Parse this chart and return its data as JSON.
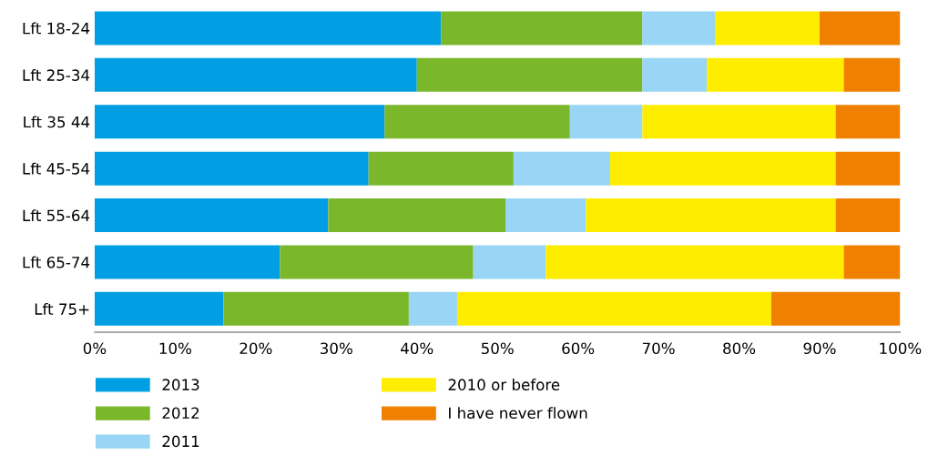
{
  "chart_data": {
    "type": "bar",
    "orientation": "horizontal",
    "stacked": true,
    "legend": "bottom",
    "grid": false,
    "categories": [
      "Lft 18-24",
      "Lft 25-34",
      "Lft 35 44",
      "Lft 45-54",
      "Lft 55-64",
      "Lft 65-74",
      "Lft 75+"
    ],
    "xlim": [
      0,
      100
    ],
    "xticks": [
      {
        "value": 0,
        "label": "0%"
      },
      {
        "value": 10,
        "label": "10%"
      },
      {
        "value": 20,
        "label": "20%"
      },
      {
        "value": 30,
        "label": "30%"
      },
      {
        "value": 40,
        "label": "40%"
      },
      {
        "value": 50,
        "label": "50%"
      },
      {
        "value": 60,
        "label": "60%"
      },
      {
        "value": 70,
        "label": "70%"
      },
      {
        "value": 80,
        "label": "80%"
      },
      {
        "value": 90,
        "label": "90%"
      },
      {
        "value": 100,
        "label": "100%"
      }
    ],
    "series": [
      {
        "name": "2013",
        "color": "#009fe3",
        "values": [
          43,
          40,
          36,
          34,
          29,
          23,
          16
        ]
      },
      {
        "name": "2012",
        "color": "#7ab72b",
        "values": [
          25,
          28,
          23,
          18,
          22,
          24,
          23
        ]
      },
      {
        "name": "2011",
        "color": "#99d5f5",
        "values": [
          9,
          8,
          9,
          12,
          10,
          9,
          6
        ]
      },
      {
        "name": "2010 or before",
        "color": "#ffed00",
        "values": [
          13,
          17,
          24,
          28,
          31,
          37,
          39
        ]
      },
      {
        "name": "I have never flown",
        "color": "#f08000",
        "values": [
          10,
          7,
          8,
          8,
          8,
          7,
          16
        ]
      }
    ]
  }
}
